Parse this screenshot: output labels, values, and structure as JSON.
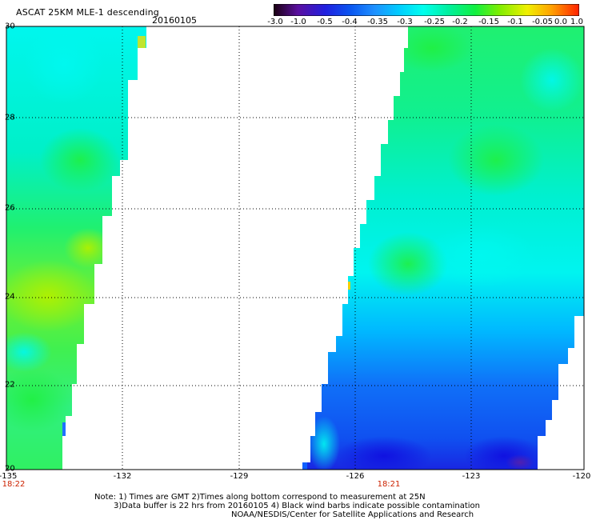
{
  "header": {
    "title": "ASCAT 25KM MLE-1 descending",
    "date": "20160105"
  },
  "colorbar": {
    "labels": [
      "-3.0",
      "-1.0",
      "-0.5",
      "-0.4",
      "-0.35",
      "-0.3",
      "-0.25",
      "-0.2",
      "-0.15",
      "-0.1",
      "-0.05",
      "0.0",
      "1.0"
    ],
    "colors": [
      "#1a0010",
      "#5a0fa0",
      "#2020e0",
      "#0a55f0",
      "#1e90ff",
      "#00ccff",
      "#00ffee",
      "#00f0a0",
      "#10f040",
      "#80ee00",
      "#f0f000",
      "#ffa000",
      "#ff2000"
    ]
  },
  "axes": {
    "lat_labels": [
      "30",
      "28",
      "26",
      "24",
      "22",
      "20"
    ],
    "lon_labels": [
      "-135",
      "-132",
      "-129",
      "-126",
      "-123",
      "-120"
    ]
  },
  "pass_times": [
    "18:22",
    "18:21"
  ],
  "notes": [
    "Note: 1) Times are GMT 2)Times along bottom correspond to measurement at 25N",
    "3)Data buffer is 22 hrs from 20160105 4) Black wind barbs indicate possible contamination",
    "NOAA/NESDIS/Center for Satellite Applications and Research"
  ]
}
